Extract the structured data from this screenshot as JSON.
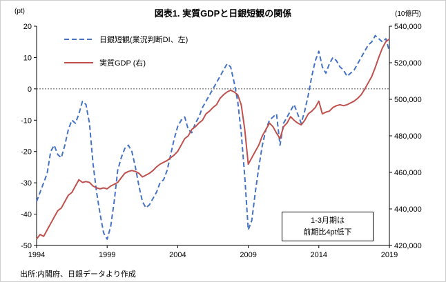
{
  "title": "図表1. 実質GDPと日銀短観の関係",
  "source_note": "出所:内閣府、日銀データより作成",
  "annotation": {
    "line1": "1-3月期は",
    "line2": "前期比4pt低下"
  },
  "chart_data": {
    "type": "line",
    "title": "図表1. 実質GDPと日銀短観の関係",
    "x_start": 1994,
    "x_step_years": 0.25,
    "x_ticks": {
      "values": [
        1994,
        1999,
        2004,
        2009,
        2014,
        2019
      ],
      "labels": [
        "1994",
        "1999",
        "2004",
        "2009",
        "2014",
        "2019"
      ]
    },
    "left_axis": {
      "unit": "(pt)",
      "range": [
        -50,
        20
      ],
      "tick_values": [
        20,
        10,
        0,
        -10,
        -20,
        -30,
        -40,
        -50
      ],
      "tick_labels": [
        "20",
        "10",
        "0",
        "-10",
        "-20",
        "-30",
        "-40",
        "-50"
      ]
    },
    "right_axis": {
      "unit": "(10億円)",
      "range": [
        420000,
        540000
      ],
      "tick_values": [
        540000,
        520000,
        500000,
        480000,
        460000,
        440000,
        420000
      ],
      "tick_labels": [
        "540,000",
        "520,000",
        "500,000",
        "480,000",
        "460,000",
        "440,000",
        "420,000"
      ]
    },
    "zero_line": 0,
    "grid": false,
    "legend_position": "top-left-inside",
    "series": [
      {
        "name": "日銀短観(業況判断DI、左)",
        "axis": "left",
        "style": "dashed",
        "color": "#4472C4",
        "values": [
          -36,
          -33,
          -30,
          -27,
          -20,
          -18,
          -21,
          -22,
          -18,
          -13,
          -10,
          -11,
          -8,
          -4,
          -5,
          -11,
          -24,
          -33,
          -40,
          -46,
          -48,
          -44,
          -36,
          -26,
          -22,
          -19,
          -18,
          -20,
          -25,
          -31,
          -36,
          -38,
          -37,
          -35,
          -33,
          -30,
          -29,
          -26,
          -21,
          -16,
          -12,
          -10,
          -9,
          -13,
          -14,
          -11,
          -9,
          -6,
          -4,
          -2,
          0,
          2,
          4,
          6,
          8,
          7,
          2,
          -4,
          -14,
          -28,
          -45,
          -42,
          -33,
          -25,
          -18,
          -13,
          -10,
          -9,
          -8,
          -18,
          -11,
          -9,
          -7,
          -5,
          -8,
          -11,
          -7,
          -2,
          4,
          9,
          12,
          7,
          5,
          8,
          10,
          9,
          7,
          6,
          4,
          5,
          6,
          8,
          10,
          12,
          14,
          15,
          17,
          16,
          15,
          16,
          12
        ]
      },
      {
        "name": "実質GDP (右)",
        "axis": "right",
        "style": "solid",
        "color": "#C0504D",
        "values": [
          423500,
          426000,
          425000,
          428500,
          432000,
          435500,
          439000,
          440500,
          444000,
          447500,
          449000,
          452500,
          456000,
          454500,
          455000,
          454500,
          452500,
          451500,
          451000,
          451500,
          451000,
          452500,
          453500,
          454500,
          457000,
          459500,
          460500,
          461000,
          460500,
          459500,
          457500,
          458500,
          459500,
          461000,
          463000,
          464500,
          465500,
          466500,
          468000,
          469500,
          471500,
          475000,
          478500,
          480000,
          483500,
          485000,
          487000,
          488500,
          492000,
          493500,
          495500,
          497000,
          500500,
          502500,
          504000,
          505000,
          504000,
          502500,
          497000,
          483500,
          464500,
          468000,
          471500,
          475000,
          480000,
          483500,
          487000,
          485000,
          481500,
          478500,
          485000,
          487000,
          490500,
          488500,
          487000,
          486000,
          488500,
          492000,
          493500,
          495500,
          499000,
          492000,
          493000,
          493500,
          495500,
          496500,
          497000,
          496500,
          497000,
          498000,
          499000,
          500500,
          502500,
          505500,
          509000,
          512500,
          517500,
          523000,
          528000,
          531500,
          533000
        ]
      }
    ]
  }
}
